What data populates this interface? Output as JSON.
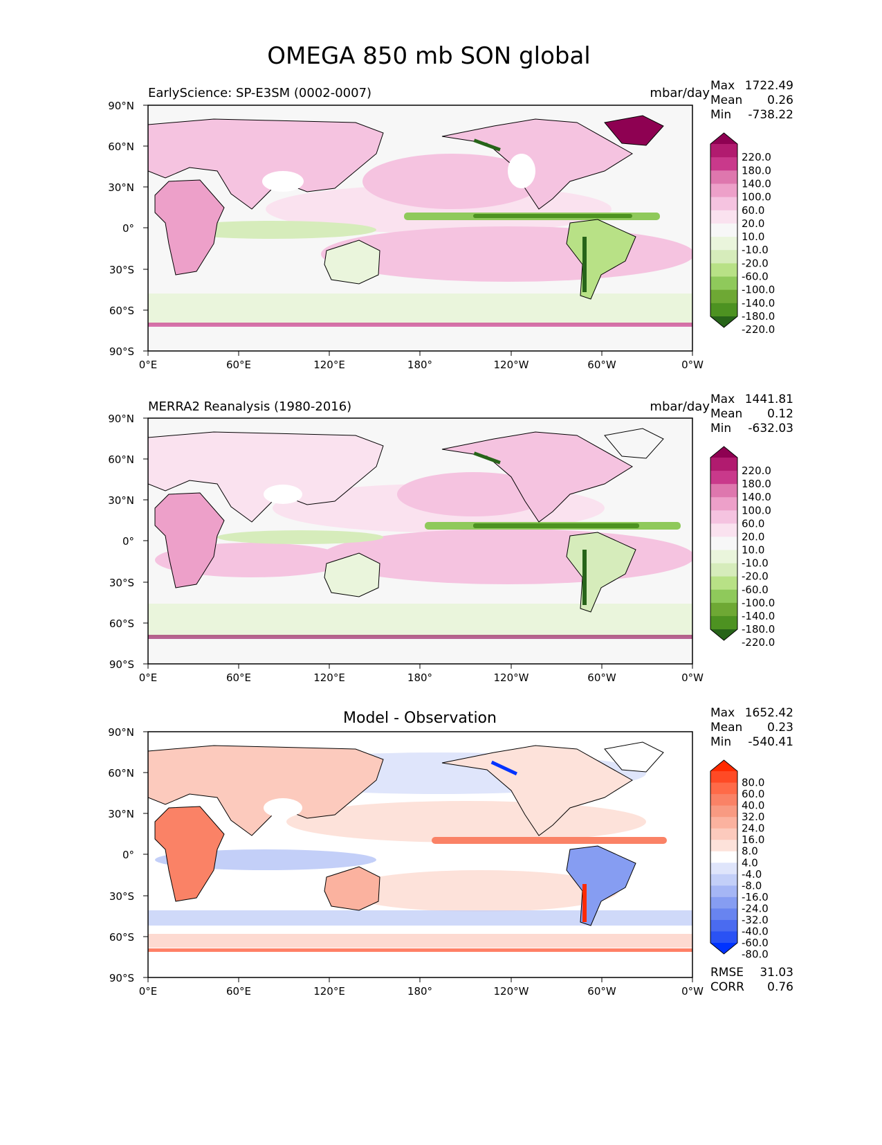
{
  "figure": {
    "title": "OMEGA 850 mb SON global"
  },
  "axis_labels": {
    "lat_ticks": [
      "90°N",
      "60°N",
      "30°N",
      "0°",
      "30°S",
      "60°S",
      "90°S"
    ],
    "lon_ticks": [
      "0°E",
      "60°E",
      "120°E",
      "180°",
      "120°W",
      "60°W",
      "0°W"
    ]
  },
  "colors": {
    "accent_pink": "#8e0152",
    "accent_green": "#276419",
    "accent_red": "#ff2a00",
    "accent_blue": "#0033ff"
  },
  "chart_data": [
    {
      "type": "heatmap",
      "title_left": "EarlyScience: SP-E3SM (0002-0007)",
      "units": "mbar/day",
      "stats": {
        "max_label": "Max",
        "max": "1722.49",
        "mean_label": "Mean",
        "mean": "0.26",
        "min_label": "Min",
        "min": "-738.22"
      },
      "colorbar": {
        "levels": [
          "220.0",
          "180.0",
          "140.0",
          "100.0",
          "60.0",
          "20.0",
          "10.0",
          "-10.0",
          "-20.0",
          "-60.0",
          "-100.0",
          "-140.0",
          "-180.0",
          "-220.0"
        ],
        "colors": [
          "#8e0152",
          "#b11b6f",
          "#c9398b",
          "#de77ae",
          "#eda0c9",
          "#f5c3e0",
          "#fae2ef",
          "#f7f7f7",
          "#eaf5dc",
          "#d6ecbb",
          "#b8e186",
          "#8fc95b",
          "#6ea834",
          "#4d9221",
          "#276419"
        ]
      },
      "xlim": [
        0,
        360
      ],
      "ylim": [
        -90,
        90
      ]
    },
    {
      "type": "heatmap",
      "title_left": "MERRA2 Reanalysis (1980-2016)",
      "units": "mbar/day",
      "stats": {
        "max_label": "Max",
        "max": "1441.81",
        "mean_label": "Mean",
        "mean": "0.12",
        "min_label": "Min",
        "min": "-632.03"
      },
      "colorbar": {
        "levels": [
          "220.0",
          "180.0",
          "140.0",
          "100.0",
          "60.0",
          "20.0",
          "10.0",
          "-10.0",
          "-20.0",
          "-60.0",
          "-100.0",
          "-140.0",
          "-180.0",
          "-220.0"
        ],
        "colors": [
          "#8e0152",
          "#b11b6f",
          "#c9398b",
          "#de77ae",
          "#eda0c9",
          "#f5c3e0",
          "#fae2ef",
          "#f7f7f7",
          "#eaf5dc",
          "#d6ecbb",
          "#b8e186",
          "#8fc95b",
          "#6ea834",
          "#4d9221",
          "#276419"
        ]
      },
      "xlim": [
        0,
        360
      ],
      "ylim": [
        -90,
        90
      ]
    },
    {
      "type": "heatmap",
      "title_center": "Model - Observation",
      "stats": {
        "max_label": "Max",
        "max": "1652.42",
        "mean_label": "Mean",
        "mean": "0.23",
        "min_label": "Min",
        "min": "-540.41"
      },
      "colorbar": {
        "levels": [
          "80.0",
          "60.0",
          "40.0",
          "32.0",
          "24.0",
          "16.0",
          "8.0",
          "4.0",
          "-4.0",
          "-8.0",
          "-16.0",
          "-24.0",
          "-32.0",
          "-40.0",
          "-60.0",
          "-80.0"
        ],
        "colors": [
          "#ff2a00",
          "#ff4a25",
          "#ff6a48",
          "#fa8266",
          "#f89a82",
          "#fbb29f",
          "#fccabd",
          "#fde2da",
          "#ffffff",
          "#dfe5fb",
          "#c3cff8",
          "#a5b6f5",
          "#869df2",
          "#6884f0",
          "#4a6bf0",
          "#2a52f4",
          "#0033ff"
        ]
      },
      "rmse_label": "RMSE",
      "rmse": "31.03",
      "corr_label": "CORR",
      "corr": "0.76",
      "xlim": [
        0,
        360
      ],
      "ylim": [
        -90,
        90
      ]
    }
  ]
}
